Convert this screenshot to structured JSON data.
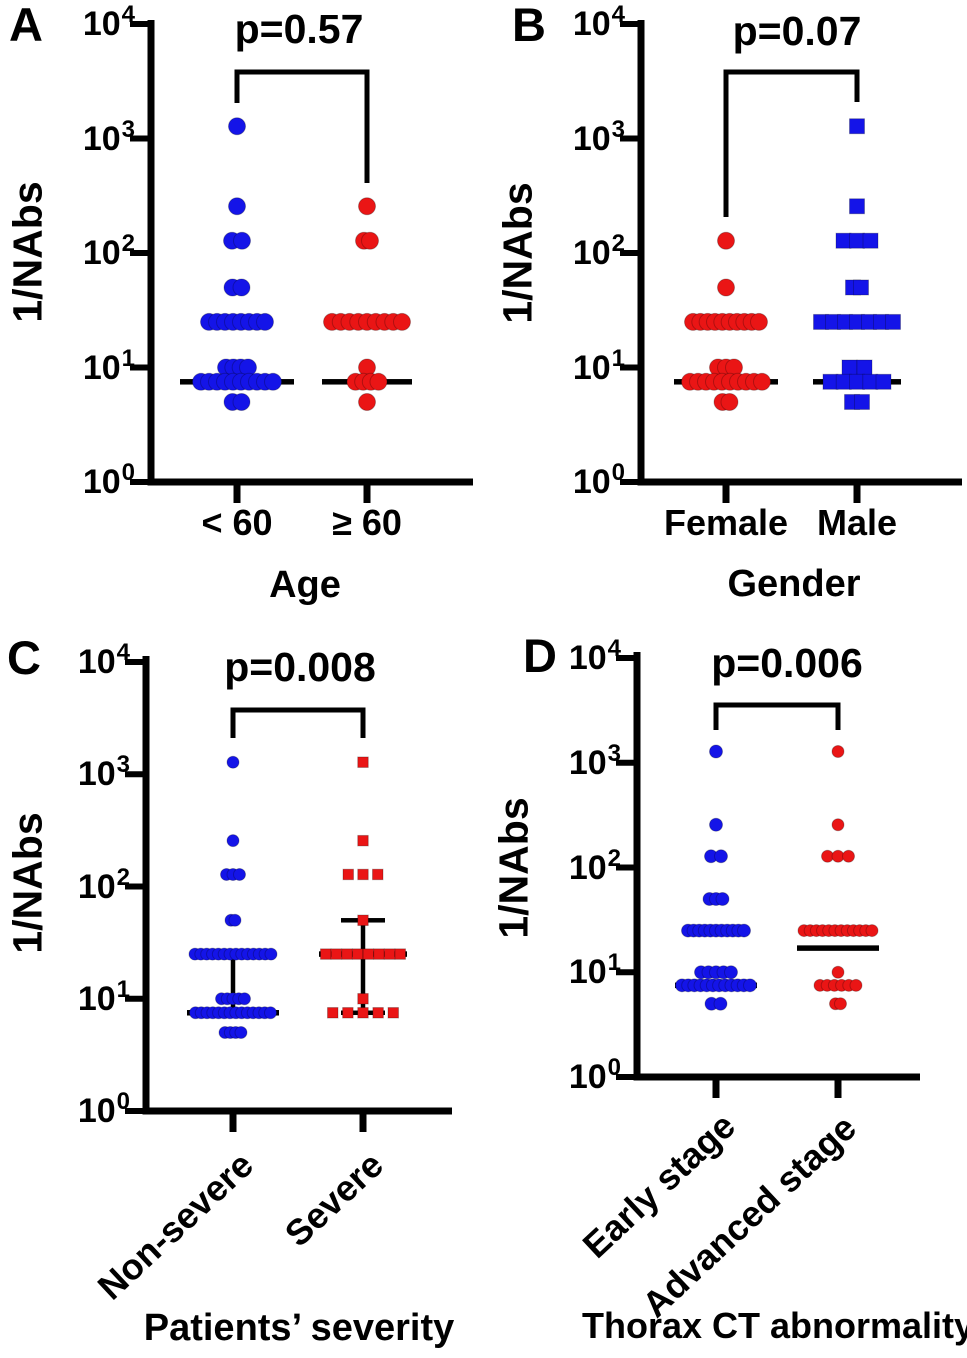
{
  "chart_data": [
    {
      "type": "scatter",
      "panel_letter": "A",
      "p_label": "p=0.57",
      "xlabel": "Age",
      "ylabel": "1/NAbs",
      "y_base": "10",
      "y_exponents": [
        "4",
        "3",
        "2",
        "1",
        "0"
      ],
      "y_scale": "log10",
      "y_domain": [
        1,
        10000
      ],
      "groups": [
        {
          "label": "< 60",
          "marker": "circle",
          "color": "#1414e8",
          "median": 7.5,
          "points": [
            [
              1280,
              1,
              17
            ],
            [
              256,
              1,
              17
            ],
            [
              128,
              2,
              27
            ],
            [
              50,
              2,
              26
            ],
            [
              25,
              8,
              73
            ],
            [
              10,
              4,
              39
            ],
            [
              7.5,
              10,
              89
            ],
            [
              5,
              2,
              26
            ]
          ]
        },
        {
          "label": "≥ 60",
          "marker": "circle",
          "color": "#ea1515",
          "median": 7.5,
          "points": [
            [
              256,
              1,
              17
            ],
            [
              128,
              2,
              23
            ],
            [
              25,
              9,
              87
            ],
            [
              10,
              1,
              17
            ],
            [
              7.5,
              4,
              40
            ],
            [
              5,
              1,
              17
            ]
          ]
        }
      ]
    },
    {
      "type": "scatter",
      "panel_letter": "B",
      "p_label": "p=0.07",
      "xlabel": "Gender",
      "ylabel": "1/NAbs",
      "y_base": "10",
      "y_exponents": [
        "4",
        "3",
        "2",
        "1",
        "0"
      ],
      "y_scale": "log10",
      "y_domain": [
        1,
        10000
      ],
      "groups": [
        {
          "label": "Female",
          "marker": "circle",
          "color": "#ea1515",
          "median": 7.5,
          "points": [
            [
              128,
              1,
              17
            ],
            [
              50,
              1,
              17
            ],
            [
              25,
              10,
              83
            ],
            [
              10,
              3,
              33
            ],
            [
              7.5,
              10,
              89
            ],
            [
              5,
              2,
              24
            ]
          ]
        },
        {
          "label": "Male",
          "marker": "square",
          "color": "#1414e8",
          "median": 7.5,
          "points": [
            [
              1280,
              1,
              15
            ],
            [
              256,
              1,
              15
            ],
            [
              128,
              3,
              42
            ],
            [
              50,
              2,
              23
            ],
            [
              25,
              7,
              87
            ],
            [
              10,
              2,
              30
            ],
            [
              7.5,
              5,
              68
            ],
            [
              5,
              2,
              25
            ]
          ]
        }
      ]
    },
    {
      "type": "scatter",
      "panel_letter": "C",
      "p_label": "p=0.008",
      "xlabel": "Patients’ severity",
      "ylabel": "1/NAbs",
      "y_base": "10",
      "y_exponents": [
        "4",
        "3",
        "2",
        "1",
        "0"
      ],
      "y_scale": "log10",
      "y_domain": [
        1,
        10000
      ],
      "groups": [
        {
          "label": "Non-severe",
          "marker": "circle",
          "color": "#1414e8",
          "median": 7.5,
          "iqr": [
            7.5,
            25
          ],
          "points": [
            [
              1280,
              1,
              12
            ],
            [
              256,
              1,
              12
            ],
            [
              128,
              3,
              25
            ],
            [
              50,
              2,
              16
            ],
            [
              25,
              14,
              88
            ],
            [
              10,
              5,
              35
            ],
            [
              7.5,
              14,
              87
            ],
            [
              5,
              4,
              28
            ]
          ]
        },
        {
          "label": "Severe",
          "marker": "square",
          "color": "#ea1515",
          "median": 25,
          "iqr": [
            7.5,
            50
          ],
          "points": [
            [
              1280,
              1,
              10
            ],
            [
              256,
              1,
              10
            ],
            [
              128,
              3,
              40
            ],
            [
              50,
              1,
              10
            ],
            [
              25,
              8,
              85
            ],
            [
              10,
              1,
              10
            ],
            [
              7.5,
              5,
              71
            ]
          ]
        }
      ]
    },
    {
      "type": "scatter",
      "panel_letter": "D",
      "p_label": "p=0.006",
      "xlabel": "Thorax CT abnormality",
      "ylabel": "1/NAbs",
      "y_base": "10",
      "y_exponents": [
        "4",
        "3",
        "2",
        "1",
        "0"
      ],
      "y_scale": "log10",
      "y_domain": [
        1,
        10000
      ],
      "groups": [
        {
          "label": "Early stage",
          "marker": "circle",
          "color": "#1414e8",
          "median": 7.5,
          "points": [
            [
              1280,
              1,
              13
            ],
            [
              256,
              1,
              13
            ],
            [
              128,
              2,
              23
            ],
            [
              50,
              3,
              26
            ],
            [
              25,
              11,
              69
            ],
            [
              10,
              5,
              43
            ],
            [
              7.5,
              12,
              81
            ],
            [
              5,
              2,
              22
            ]
          ]
        },
        {
          "label": "Advanced stage",
          "marker": "circle",
          "color": "#ea1515",
          "median": 17,
          "points": [
            [
              1280,
              1,
              13
            ],
            [
              256,
              1,
              13
            ],
            [
              128,
              3,
              33
            ],
            [
              25,
              12,
              80
            ],
            [
              10,
              1,
              13
            ],
            [
              7.5,
              6,
              48
            ],
            [
              5,
              2,
              17
            ]
          ]
        }
      ]
    }
  ]
}
